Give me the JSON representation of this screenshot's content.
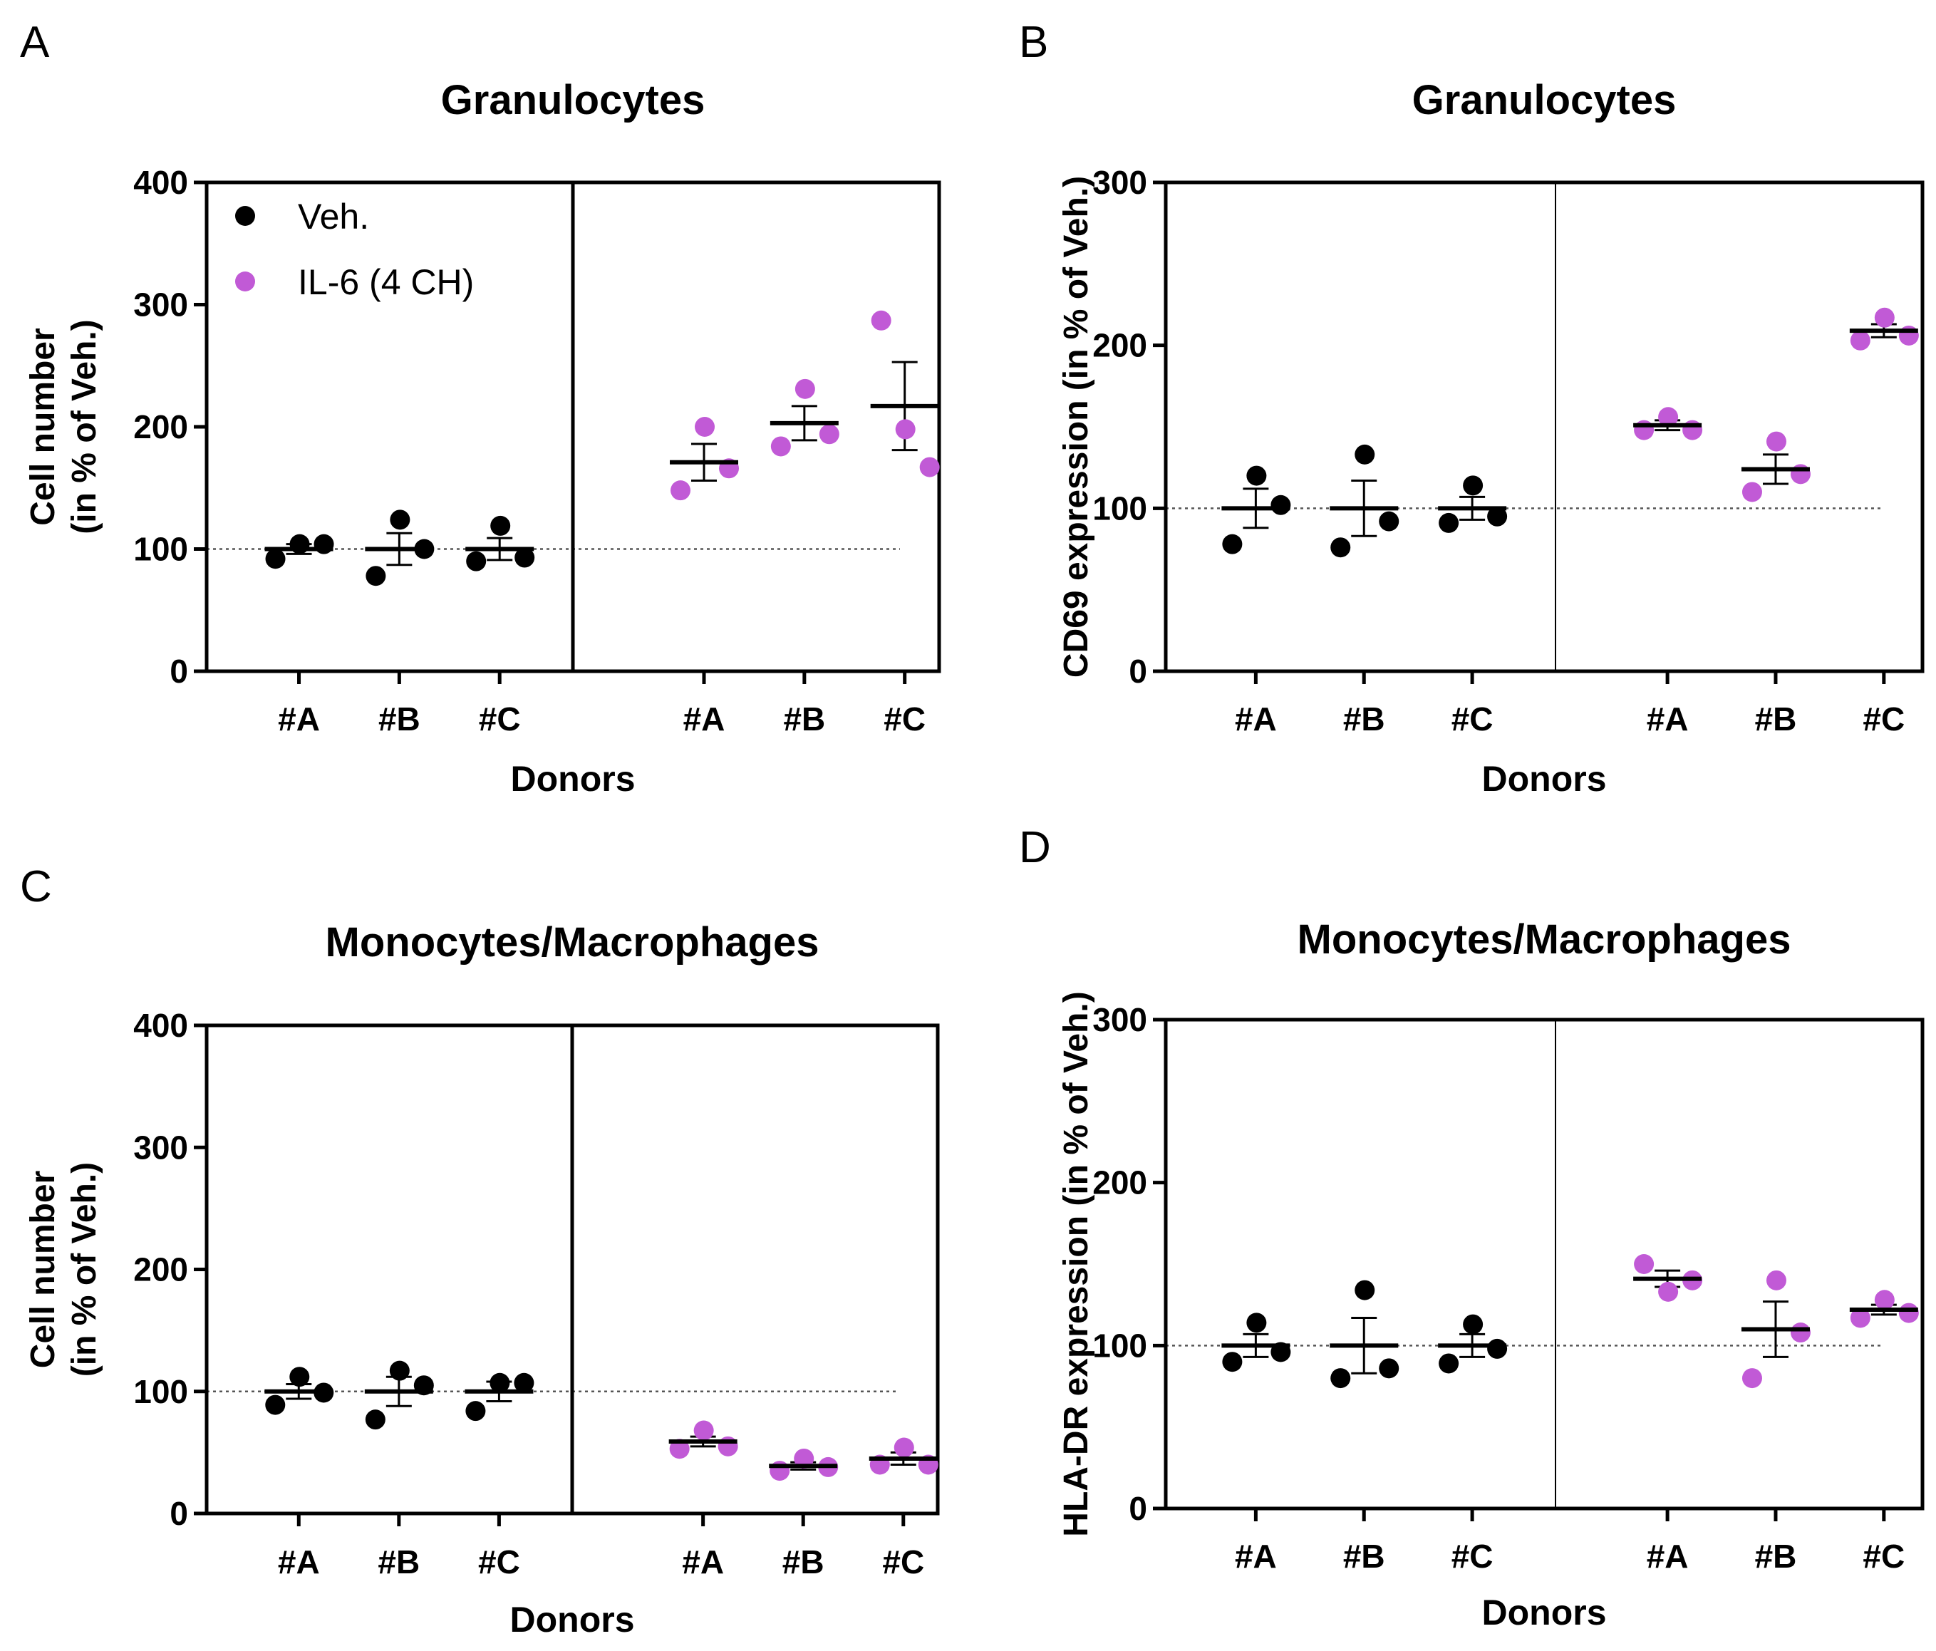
{
  "colors": {
    "vehicle": "#000000",
    "il6": "#c15ad6"
  },
  "legend": [
    {
      "label": "Veh.",
      "color": "#000000"
    },
    {
      "label": "IL-6 (4 CH)",
      "color": "#c15ad6"
    }
  ],
  "chart_data": [
    {
      "type": "scatter",
      "panel": "A",
      "title": "Granulocytes",
      "xlabel": "Donors",
      "ylabel": [
        "Cell number",
        "(in % of Veh.)"
      ],
      "ylim": [
        0,
        400
      ],
      "yticks": [
        "0",
        "100",
        "200",
        "300",
        "400"
      ],
      "categories": [
        "#A",
        "#B",
        "#C",
        "#A",
        "#B",
        "#C"
      ],
      "reference_line": 100,
      "divider": "thick",
      "has_legend": true,
      "series": [
        {
          "name": "Veh.",
          "groups": [
            {
              "donor": "#A",
              "points": [
                92,
                104,
                104
              ],
              "mean": 100,
              "sem": 4
            },
            {
              "donor": "#B",
              "points": [
                78,
                124,
                100
              ],
              "mean": 100,
              "sem": 13
            },
            {
              "donor": "#C",
              "points": [
                90,
                119,
                93
              ],
              "mean": 100,
              "sem": 9
            }
          ]
        },
        {
          "name": "IL-6 (4 CH)",
          "groups": [
            {
              "donor": "#A",
              "points": [
                148,
                200,
                166
              ],
              "mean": 171,
              "sem": 15
            },
            {
              "donor": "#B",
              "points": [
                184,
                231,
                194
              ],
              "mean": 203,
              "sem": 14
            },
            {
              "donor": "#C",
              "points": [
                287,
                198,
                167
              ],
              "mean": 217,
              "sem": 36
            }
          ]
        }
      ]
    },
    {
      "type": "scatter",
      "panel": "B",
      "title": "Granulocytes",
      "xlabel": "Donors",
      "ylabel": [
        "CD69 expression (in % of Veh.)"
      ],
      "ylim": [
        0,
        300
      ],
      "yticks": [
        "0",
        "100",
        "200",
        "300"
      ],
      "categories": [
        "#A",
        "#B",
        "#C",
        "#A",
        "#B",
        "#C"
      ],
      "reference_line": 100,
      "divider": "thin",
      "has_legend": false,
      "series": [
        {
          "name": "Veh.",
          "groups": [
            {
              "donor": "#A",
              "points": [
                78,
                120,
                102
              ],
              "mean": 100,
              "sem": 12
            },
            {
              "donor": "#B",
              "points": [
                76,
                133,
                92
              ],
              "mean": 100,
              "sem": 17
            },
            {
              "donor": "#C",
              "points": [
                91,
                114,
                95
              ],
              "mean": 100,
              "sem": 7
            }
          ]
        },
        {
          "name": "IL-6 (4 CH)",
          "groups": [
            {
              "donor": "#A",
              "points": [
                148,
                156,
                148
              ],
              "mean": 151,
              "sem": 3
            },
            {
              "donor": "#B",
              "points": [
                110,
                141,
                121
              ],
              "mean": 124,
              "sem": 9
            },
            {
              "donor": "#C",
              "points": [
                203,
                217,
                206
              ],
              "mean": 209,
              "sem": 4
            }
          ]
        }
      ]
    },
    {
      "type": "scatter",
      "panel": "C",
      "title": "Monocytes/Macrophages",
      "xlabel": "Donors",
      "ylabel": [
        "Cell number",
        "(in % of Veh.)"
      ],
      "ylim": [
        0,
        400
      ],
      "yticks": [
        "0",
        "100",
        "200",
        "300",
        "400"
      ],
      "categories": [
        "#A",
        "#B",
        "#C",
        "#A",
        "#B",
        "#C"
      ],
      "reference_line": 100,
      "divider": "thick",
      "has_legend": false,
      "series": [
        {
          "name": "Veh.",
          "groups": [
            {
              "donor": "#A",
              "points": [
                89,
                112,
                99
              ],
              "mean": 100,
              "sem": 6
            },
            {
              "donor": "#B",
              "points": [
                77,
                117,
                105
              ],
              "mean": 100,
              "sem": 12
            },
            {
              "donor": "#C",
              "points": [
                84,
                107,
                107
              ],
              "mean": 100,
              "sem": 8
            }
          ]
        },
        {
          "name": "IL-6 (4 CH)",
          "groups": [
            {
              "donor": "#A",
              "points": [
                53,
                68,
                55
              ],
              "mean": 59,
              "sem": 4
            },
            {
              "donor": "#B",
              "points": [
                35,
                45,
                38
              ],
              "mean": 39,
              "sem": 3
            },
            {
              "donor": "#C",
              "points": [
                40,
                54,
                40
              ],
              "mean": 45,
              "sem": 5
            }
          ]
        }
      ]
    },
    {
      "type": "scatter",
      "panel": "D",
      "title": "Monocytes/Macrophages",
      "xlabel": "Donors",
      "ylabel": [
        "HLA-DR expression (in % of Veh.)"
      ],
      "ylim": [
        0,
        300
      ],
      "yticks": [
        "0",
        "100",
        "200",
        "300"
      ],
      "categories": [
        "#A",
        "#B",
        "#C",
        "#A",
        "#B",
        "#C"
      ],
      "reference_line": 100,
      "divider": "thin",
      "has_legend": false,
      "series": [
        {
          "name": "Veh.",
          "groups": [
            {
              "donor": "#A",
              "points": [
                90,
                114,
                96
              ],
              "mean": 100,
              "sem": 7
            },
            {
              "donor": "#B",
              "points": [
                80,
                134,
                86
              ],
              "mean": 100,
              "sem": 17
            },
            {
              "donor": "#C",
              "points": [
                89,
                113,
                98
              ],
              "mean": 100,
              "sem": 7
            }
          ]
        },
        {
          "name": "IL-6 (4 CH)",
          "groups": [
            {
              "donor": "#A",
              "points": [
                150,
                133,
                140
              ],
              "mean": 141,
              "sem": 5
            },
            {
              "donor": "#B",
              "points": [
                80,
                140,
                108
              ],
              "mean": 110,
              "sem": 17
            },
            {
              "donor": "#C",
              "points": [
                117,
                128,
                120
              ],
              "mean": 122,
              "sem": 3
            }
          ]
        }
      ]
    }
  ]
}
